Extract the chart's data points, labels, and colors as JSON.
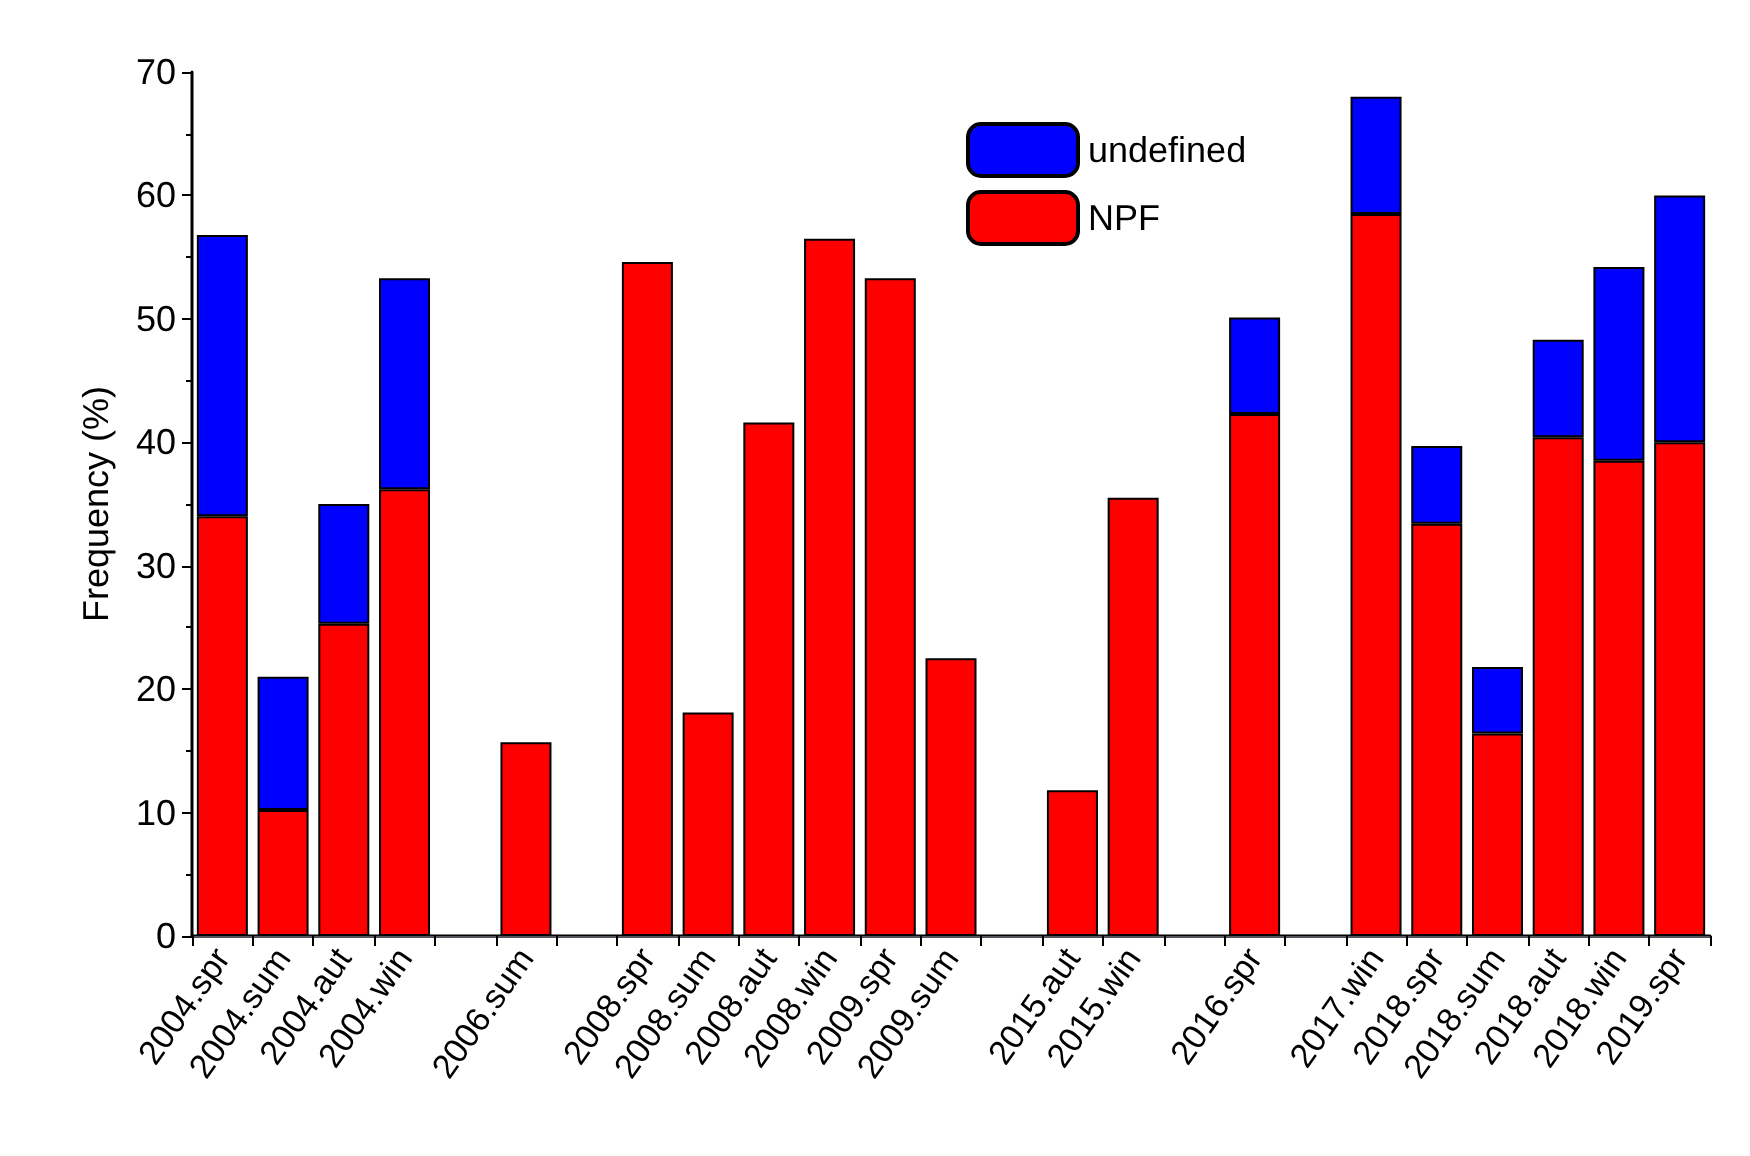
{
  "chart_data": {
    "type": "bar",
    "ylabel": "Frequency (%)",
    "stacked": true,
    "legend": "top",
    "grid": false,
    "categories": [
      "2004.spr",
      "2004.sum",
      "2004.aut",
      "2004.win",
      null,
      "2006.sum",
      null,
      "2008.spr",
      "2008.sum",
      "2008.aut",
      "2008.win",
      "2009.spr",
      "2009.sum",
      null,
      "2015.aut",
      "2015.win",
      null,
      "2016.spr",
      null,
      "2017.win",
      "2018.spr",
      "2018.sum",
      "2018.aut",
      "2018.win",
      "2019.spr"
    ],
    "series": [
      {
        "name": "NPF",
        "color": "#ff0000",
        "values": [
          34,
          10.2,
          25.3,
          36.2,
          null,
          15.7,
          null,
          54.6,
          18.1,
          41.6,
          56.5,
          53.3,
          22.5,
          null,
          11.8,
          35.5,
          null,
          42.3,
          null,
          58.5,
          33.4,
          16.4,
          40.4,
          38.5,
          40
        ]
      },
      {
        "name": "undefined",
        "color": "#0000ff",
        "values": [
          22.8,
          10.8,
          9.7,
          17.1,
          null,
          null,
          null,
          null,
          null,
          null,
          null,
          null,
          null,
          null,
          null,
          null,
          null,
          7.8,
          null,
          9.5,
          6.3,
          5.4,
          7.9,
          15.7,
          20
        ]
      }
    ],
    "ylim": [
      0,
      70
    ],
    "yticks": [
      0,
      10,
      20,
      30,
      40,
      50,
      60,
      70
    ]
  }
}
